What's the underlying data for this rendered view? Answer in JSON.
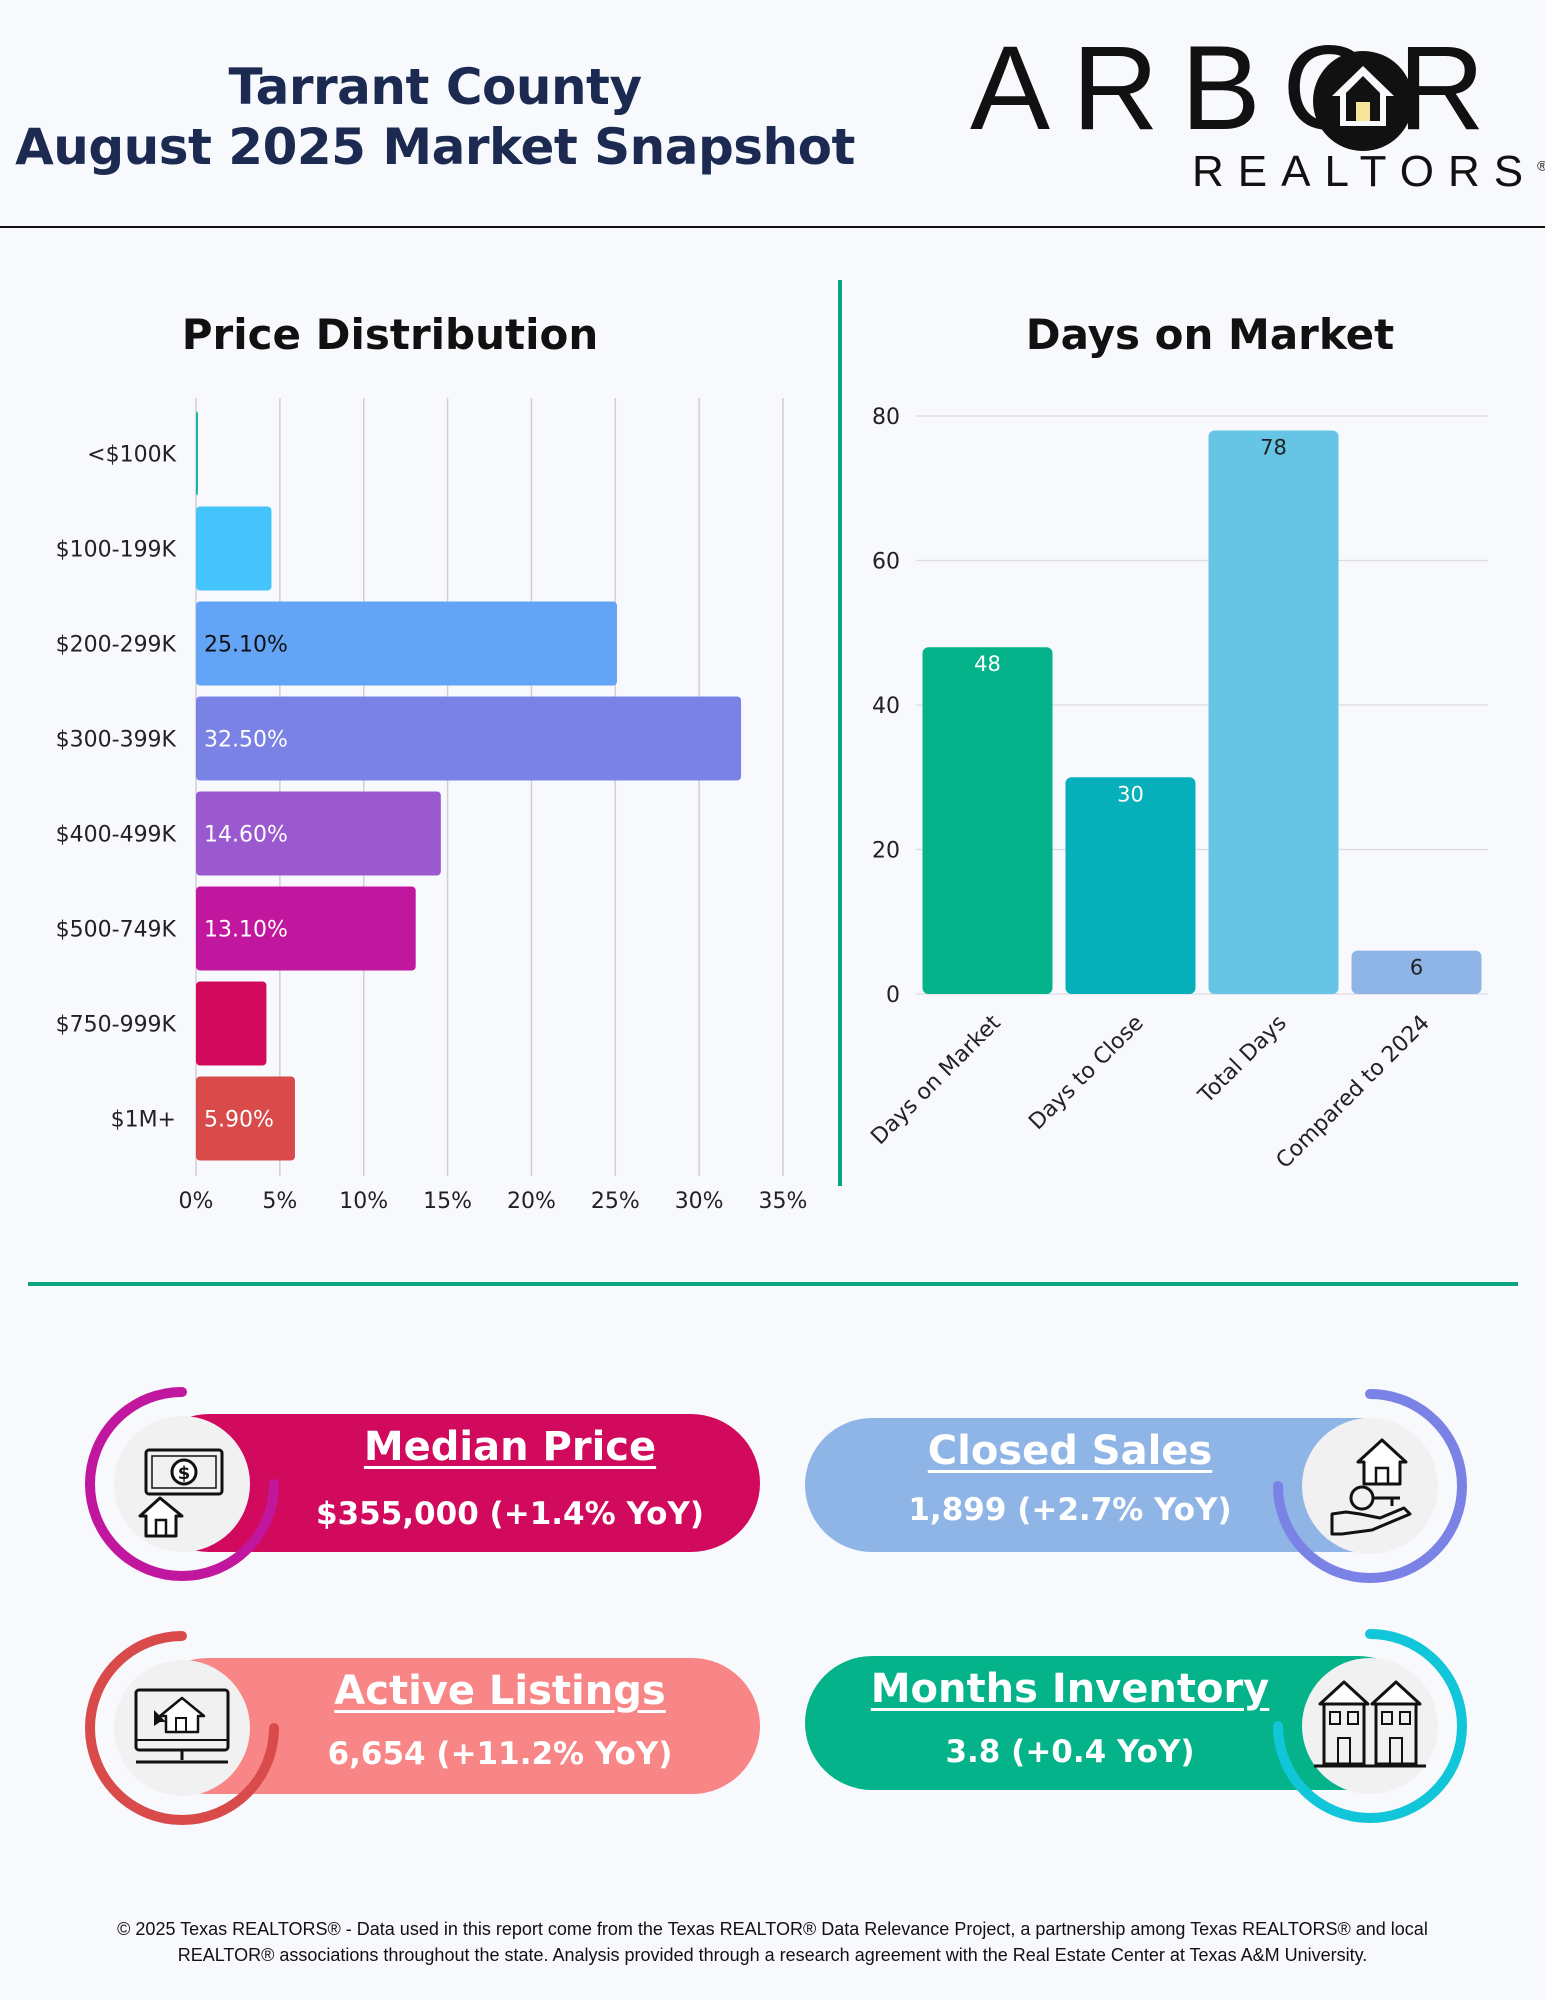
{
  "header": {
    "title_line1": "Tarrant County",
    "title_line2": "August 2025 Market Snapshot",
    "logo_word": "ARBOR",
    "logo_sub": "REALTORS",
    "logo_reg": "®"
  },
  "chart_data": [
    {
      "type": "bar",
      "orientation": "horizontal",
      "title": "Price Distribution",
      "categories": [
        "<$100K",
        "$100-199K",
        "$200-299K",
        "$300-399K",
        "$400-499K",
        "$500-749K",
        "$750-999K",
        "$1M+"
      ],
      "values": [
        0.1,
        4.5,
        25.1,
        32.5,
        14.6,
        13.1,
        4.2,
        5.9
      ],
      "data_labels": [
        "",
        "",
        "25.10%",
        "32.50%",
        "14.60%",
        "13.10%",
        "",
        "5.90%"
      ],
      "colors": [
        "#18b8a8",
        "#45c4fb",
        "#63a4f7",
        "#7b82e6",
        "#9b59d0",
        "#c0179e",
        "#d20a5e",
        "#d94a4a"
      ],
      "xlim": [
        0,
        35
      ],
      "xticks": [
        "0%",
        "5%",
        "10%",
        "15%",
        "20%",
        "25%",
        "30%",
        "35%"
      ],
      "grid": true
    },
    {
      "type": "bar",
      "title": "Days on Market",
      "categories": [
        "Days on Market",
        "Days to Close",
        "Total Days",
        "Compared to 2024"
      ],
      "values": [
        48,
        30,
        78,
        6
      ],
      "colors": [
        "#05b38a",
        "#05b0bb",
        "#66c4e4",
        "#8fb5e6"
      ],
      "ylim": [
        0,
        80
      ],
      "yticks": [
        "0",
        "20",
        "40",
        "60",
        "80"
      ],
      "grid": true
    }
  ],
  "stats": {
    "median_price": {
      "title": "Median Price",
      "value": "$355,000 (+1.4% YoY)",
      "icon": "money-house-icon"
    },
    "closed_sales": {
      "title": "Closed Sales",
      "value": "1,899 (+2.7% YoY)",
      "icon": "hand-house-key-icon"
    },
    "active_listings": {
      "title": "Active Listings",
      "value": "6,654 (+11.2% YoY)",
      "icon": "computer-house-icon"
    },
    "months_inventory": {
      "title": "Months Inventory",
      "value": "3.8 (+0.4 YoY)",
      "icon": "townhouses-icon"
    }
  },
  "colors": {
    "median": "#d20a5e",
    "closed": "#8fb5e6",
    "active": "#f88686",
    "months": "#05b38a",
    "accent_line": "#0ca37f",
    "title_navy": "#1c2a52"
  },
  "footer": {
    "line1": "© 2025 Texas REALTORS® - Data used in this report come from the Texas REALTOR® Data Relevance Project, a partnership among Texas REALTORS® and local",
    "line2": "REALTOR® associations throughout the state. Analysis provided through a research agreement with the Real Estate Center at Texas A&M University."
  }
}
